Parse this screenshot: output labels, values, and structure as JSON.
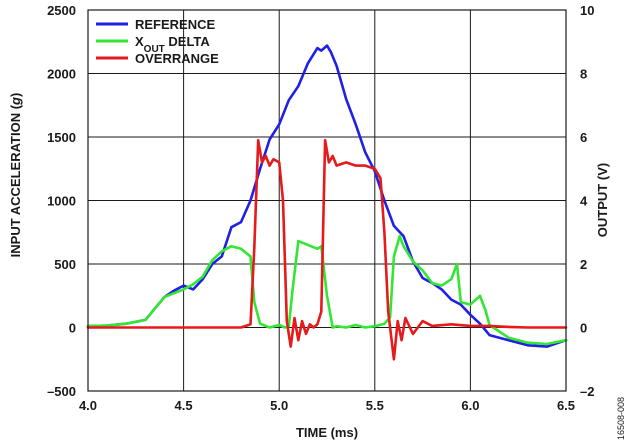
{
  "chart_data": {
    "type": "line",
    "figure_id": "16508-008",
    "xlabel": "TIME (ms)",
    "ylabel_left": "INPUT ACCELERATION (g)",
    "ylabel_left_main": "INPUT ACCELERATION (",
    "ylabel_left_unit": "g",
    "ylabel_left_close": ")",
    "ylabel_right": "OUTPUT (V)",
    "xlim": [
      4.0,
      6.5
    ],
    "ylim_left": [
      -500,
      2500
    ],
    "ylim_right": [
      -2,
      10
    ],
    "x_ticks": [
      "4.0",
      "4.5",
      "5.0",
      "5.5",
      "6.0",
      "6.5"
    ],
    "y_left_ticks": [
      "2500",
      "2000",
      "1500",
      "1000",
      "500",
      "0",
      "–500"
    ],
    "y_right_ticks": [
      "10",
      "8",
      "6",
      "4",
      "2",
      "0",
      "–2"
    ],
    "grid": true,
    "legend_position": "top-left",
    "series": [
      {
        "name": "REFERENCE",
        "legend_main": "REFERENCE",
        "axis": "left",
        "color": "#1f1fe6",
        "x": [
          4.0,
          4.1,
          4.2,
          4.3,
          4.35,
          4.4,
          4.45,
          4.5,
          4.55,
          4.6,
          4.65,
          4.7,
          4.75,
          4.8,
          4.85,
          4.9,
          4.95,
          5.0,
          5.05,
          5.1,
          5.15,
          5.2,
          5.22,
          5.25,
          5.27,
          5.3,
          5.35,
          5.4,
          5.45,
          5.5,
          5.55,
          5.6,
          5.65,
          5.7,
          5.75,
          5.8,
          5.85,
          5.9,
          5.95,
          6.0,
          6.05,
          6.1,
          6.2,
          6.3,
          6.4,
          6.5
        ],
        "values": [
          10,
          15,
          30,
          60,
          150,
          240,
          290,
          330,
          300,
          380,
          500,
          560,
          790,
          830,
          1000,
          1250,
          1480,
          1600,
          1790,
          1900,
          2080,
          2200,
          2180,
          2220,
          2170,
          2060,
          1800,
          1600,
          1380,
          1230,
          1000,
          800,
          720,
          520,
          390,
          350,
          300,
          220,
          180,
          100,
          30,
          -60,
          -100,
          -140,
          -150,
          -100
        ]
      },
      {
        "name": "XOUT DELTA",
        "legend_main": "X",
        "legend_sub": "OUT",
        "legend_rest": " DELTA",
        "axis": "left",
        "color": "#33e633",
        "x": [
          4.0,
          4.1,
          4.2,
          4.3,
          4.35,
          4.4,
          4.45,
          4.5,
          4.55,
          4.6,
          4.65,
          4.7,
          4.75,
          4.8,
          4.85,
          4.87,
          4.9,
          4.95,
          5.0,
          5.03,
          5.05,
          5.07,
          5.1,
          5.15,
          5.2,
          5.22,
          5.25,
          5.28,
          5.3,
          5.35,
          5.4,
          5.45,
          5.5,
          5.55,
          5.58,
          5.6,
          5.63,
          5.65,
          5.7,
          5.75,
          5.8,
          5.85,
          5.9,
          5.93,
          5.95,
          6.0,
          6.05,
          6.08,
          6.1,
          6.2,
          6.3,
          6.4,
          6.5
        ],
        "values": [
          10,
          15,
          30,
          60,
          150,
          240,
          270,
          300,
          340,
          400,
          530,
          600,
          640,
          620,
          560,
          200,
          30,
          0,
          20,
          0,
          10,
          300,
          680,
          650,
          620,
          640,
          250,
          0,
          10,
          0,
          20,
          0,
          10,
          30,
          80,
          560,
          720,
          640,
          520,
          450,
          350,
          330,
          380,
          500,
          200,
          180,
          250,
          130,
          20,
          -80,
          -120,
          -130,
          -100
        ]
      },
      {
        "name": "OVERRANGE",
        "legend_main": "OVERRANGE",
        "axis": "right",
        "color": "#e61a1a",
        "x": [
          4.0,
          4.8,
          4.85,
          4.87,
          4.89,
          4.91,
          4.93,
          4.95,
          4.97,
          5.0,
          5.02,
          5.04,
          5.06,
          5.08,
          5.1,
          5.12,
          5.14,
          5.16,
          5.18,
          5.2,
          5.22,
          5.24,
          5.26,
          5.28,
          5.3,
          5.35,
          5.4,
          5.45,
          5.5,
          5.53,
          5.55,
          5.57,
          5.6,
          5.62,
          5.64,
          5.66,
          5.7,
          5.75,
          5.8,
          5.9,
          6.0,
          6.1,
          6.2,
          6.3,
          6.4,
          6.5
        ],
        "values": [
          0,
          0,
          0.1,
          2.5,
          5.9,
          5.2,
          5.4,
          5.1,
          5.3,
          5.2,
          4.0,
          0.2,
          -0.6,
          0.3,
          -0.4,
          0.2,
          -0.2,
          0.1,
          0,
          0.1,
          0.5,
          5.9,
          5.2,
          5.4,
          5.1,
          5.2,
          5.1,
          5.1,
          5.0,
          4.7,
          3.0,
          0.5,
          -1.0,
          0.2,
          -0.4,
          0.3,
          -0.2,
          0.2,
          0.05,
          0.1,
          0.05,
          0.05,
          0.02,
          0,
          0,
          0
        ]
      }
    ]
  }
}
